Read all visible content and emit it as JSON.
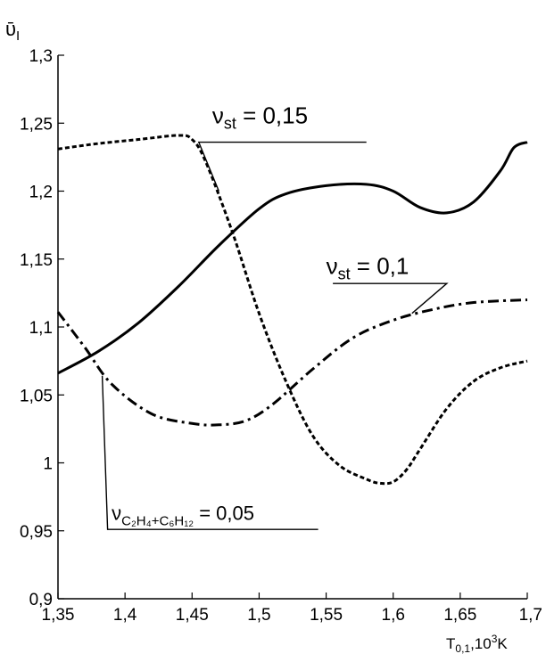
{
  "chart_data": {
    "type": "line",
    "title": "",
    "ylabel": "ῡ_I",
    "ylabel_parts": {
      "base": "ῡ",
      "sub": "I"
    },
    "xlabel": "T_0,1, 10^3 K",
    "xlabel_parts": {
      "base": "T",
      "sub": "0,1",
      "mid": ",10",
      "sup": "3",
      "unit": "K"
    },
    "xlim": [
      1.35,
      1.7
    ],
    "ylim": [
      0.9,
      1.3
    ],
    "grid": false,
    "legend": "none",
    "x_ticks": [
      {
        "value": 1.35,
        "label": "1,35"
      },
      {
        "value": 1.4,
        "label": "1,4"
      },
      {
        "value": 1.45,
        "label": "1,45"
      },
      {
        "value": 1.5,
        "label": "1,5"
      },
      {
        "value": 1.55,
        "label": "1,55"
      },
      {
        "value": 1.6,
        "label": "1,6"
      },
      {
        "value": 1.65,
        "label": "1,65"
      },
      {
        "value": 1.7,
        "label": "1,7"
      }
    ],
    "y_ticks": [
      {
        "value": 0.9,
        "label": "0,9"
      },
      {
        "value": 0.95,
        "label": "0,95"
      },
      {
        "value": 1.0,
        "label": "1"
      },
      {
        "value": 1.05,
        "label": "1,05"
      },
      {
        "value": 1.1,
        "label": "1,1"
      },
      {
        "value": 1.15,
        "label": "1,15"
      },
      {
        "value": 1.2,
        "label": "1,2"
      },
      {
        "value": 1.25,
        "label": "1,25"
      },
      {
        "value": 1.3,
        "label": "1,3"
      }
    ],
    "series": [
      {
        "style": "dashed",
        "x": [
          1.35,
          1.38,
          1.41,
          1.44,
          1.45,
          1.46,
          1.48,
          1.5,
          1.52,
          1.54,
          1.56,
          1.58,
          1.59,
          1.6,
          1.61,
          1.62,
          1.64,
          1.66,
          1.68,
          1.7
        ],
        "y": [
          1.231,
          1.235,
          1.238,
          1.241,
          1.238,
          1.222,
          1.17,
          1.11,
          1.06,
          1.02,
          0.998,
          0.988,
          0.985,
          0.986,
          0.995,
          1.01,
          1.04,
          1.06,
          1.07,
          1.075
        ]
      },
      {
        "style": "solid",
        "x": [
          1.35,
          1.38,
          1.41,
          1.44,
          1.47,
          1.5,
          1.52,
          1.55,
          1.58,
          1.6,
          1.62,
          1.64,
          1.66,
          1.68,
          1.69,
          1.7
        ],
        "y": [
          1.066,
          1.082,
          1.103,
          1.13,
          1.16,
          1.187,
          1.198,
          1.204,
          1.205,
          1.2,
          1.188,
          1.184,
          1.192,
          1.215,
          1.232,
          1.236
        ]
      },
      {
        "style": "dashdot",
        "x": [
          1.35,
          1.37,
          1.39,
          1.42,
          1.45,
          1.47,
          1.49,
          1.51,
          1.54,
          1.57,
          1.6,
          1.63,
          1.66,
          1.7
        ],
        "y": [
          1.111,
          1.085,
          1.058,
          1.036,
          1.029,
          1.028,
          1.031,
          1.043,
          1.069,
          1.092,
          1.105,
          1.113,
          1.118,
          1.12
        ]
      }
    ],
    "annotations": [
      {
        "series_index": 0,
        "text_parts": {
          "base": "ν",
          "sub": "st",
          "rest": " = 0,15"
        },
        "text": "ν_st = 0,15",
        "label_x": 1.465,
        "label_y": 1.25,
        "line_x": [
          1.58,
          1.455,
          1.47
        ],
        "line_y": [
          1.236,
          1.236,
          1.2
        ]
      },
      {
        "series_index": 2,
        "text_parts": {
          "base": "ν",
          "sub": "st",
          "rest": " = 0,1"
        },
        "text": "ν_st = 0,1",
        "label_x": 1.55,
        "label_y": 1.139,
        "line_x": [
          1.555,
          1.64,
          1.614
        ],
        "line_y": [
          1.132,
          1.132,
          1.11
        ]
      },
      {
        "series_index": 1,
        "text_parts": {
          "base": "ν",
          "sub": "C₂H₄+C₆H₁₂",
          "rest": " = 0,05"
        },
        "text": "ν_C₂H₄+C₆H₁₂ = 0,05",
        "label_x": 1.39,
        "label_y": 0.958,
        "line_x": [
          1.544,
          1.387,
          1.383
        ],
        "line_y": [
          0.951,
          0.951,
          1.064
        ]
      }
    ]
  }
}
